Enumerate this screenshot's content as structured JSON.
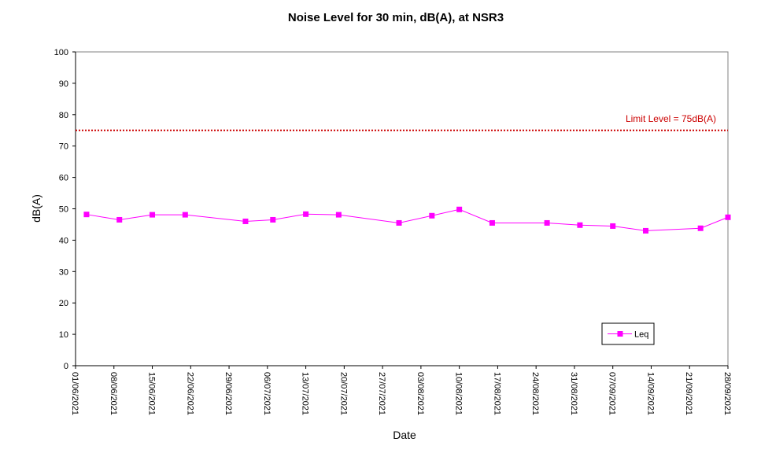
{
  "chart_data": {
    "type": "line",
    "title": "Noise Level for 30 min, dB(A), at NSR3",
    "xlabel": "Date",
    "ylabel": "dB(A)",
    "ylim": [
      0,
      100
    ],
    "yticks": [
      0,
      10,
      20,
      30,
      40,
      50,
      60,
      70,
      80,
      90,
      100
    ],
    "xlim": [
      "2021-06-01",
      "2021-09-28"
    ],
    "xtick_labels": [
      "01/06/2021",
      "08/06/2021",
      "15/06/2021",
      "22/06/2021",
      "29/06/2021",
      "06/07/2021",
      "13/07/2021",
      "20/07/2021",
      "27/07/2021",
      "03/08/2021",
      "10/08/2021",
      "17/08/2021",
      "24/08/2021",
      "31/08/2021",
      "07/09/2021",
      "14/09/2021",
      "21/09/2021",
      "28/09/2021"
    ],
    "grid": false,
    "legend": "bottom-right",
    "limit": {
      "value": 75,
      "label": "Limit Level  = 75dB(A)",
      "color": "#cc0000"
    },
    "series": [
      {
        "name": "Leq",
        "color": "#ff00ff",
        "x": [
          "2021-06-03",
          "2021-06-09",
          "2021-06-15",
          "2021-06-21",
          "2021-07-02",
          "2021-07-07",
          "2021-07-13",
          "2021-07-19",
          "2021-07-30",
          "2021-08-05",
          "2021-08-10",
          "2021-08-16",
          "2021-08-26",
          "2021-09-01",
          "2021-09-07",
          "2021-09-13",
          "2021-09-23",
          "2021-09-28"
        ],
        "y": [
          48.2,
          46.5,
          48.1,
          48.1,
          46.0,
          46.5,
          48.3,
          48.1,
          45.5,
          47.8,
          49.8,
          45.5,
          45.5,
          44.8,
          44.5,
          43.0,
          43.8,
          47.3
        ]
      }
    ]
  }
}
